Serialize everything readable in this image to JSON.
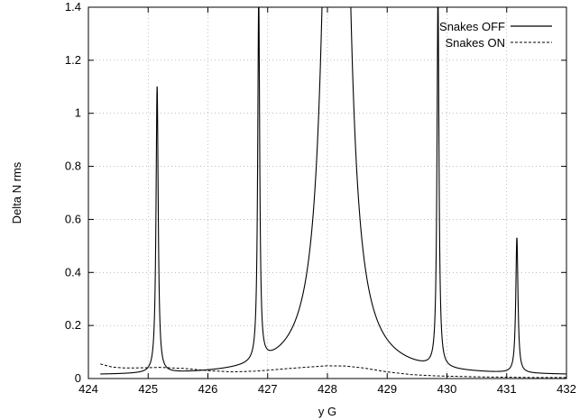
{
  "chart_data": {
    "type": "line",
    "title": "",
    "xlabel": "y G",
    "ylabel": "Delta N rms",
    "xlim": [
      424,
      432
    ],
    "ylim": [
      0,
      1.4
    ],
    "x_ticks": [
      "424",
      "425",
      "426",
      "427",
      "428",
      "429",
      "430",
      "431",
      "432"
    ],
    "y_ticks": [
      "0",
      "0.2",
      "0.4",
      "0.6",
      "0.8",
      "1",
      "1.2",
      "1.4"
    ],
    "grid": true,
    "legend_position": "top-right",
    "series": [
      {
        "name": "Snakes OFF",
        "style": "solid",
        "color": "#000000",
        "peaks": [
          {
            "x0": 425.15,
            "height": 1.08,
            "width": 0.022
          },
          {
            "x0": 426.85,
            "height": 1.37,
            "width": 0.02
          },
          {
            "x0": 428.15,
            "height": 7.0,
            "width": 0.12
          },
          {
            "x0": 429.85,
            "height": 1.4,
            "width": 0.02
          },
          {
            "x0": 431.17,
            "height": 0.51,
            "width": 0.022
          }
        ],
        "baseline": 0.01
      },
      {
        "name": "Snakes ON",
        "style": "dashed",
        "color": "#000000",
        "x": [
          424.2,
          424.4,
          424.6,
          424.8,
          425.0,
          425.2,
          425.6,
          426.0,
          426.4,
          426.8,
          427.2,
          427.6,
          428.0,
          428.3,
          428.6,
          429.0,
          429.4,
          429.8,
          430.2,
          430.6,
          431.0,
          431.4,
          431.8,
          432.0
        ],
        "y": [
          0.055,
          0.043,
          0.04,
          0.04,
          0.041,
          0.042,
          0.038,
          0.03,
          0.025,
          0.028,
          0.035,
          0.042,
          0.048,
          0.047,
          0.04,
          0.025,
          0.015,
          0.01,
          0.008,
          0.006,
          0.005,
          0.004,
          0.004,
          0.004
        ]
      }
    ]
  }
}
